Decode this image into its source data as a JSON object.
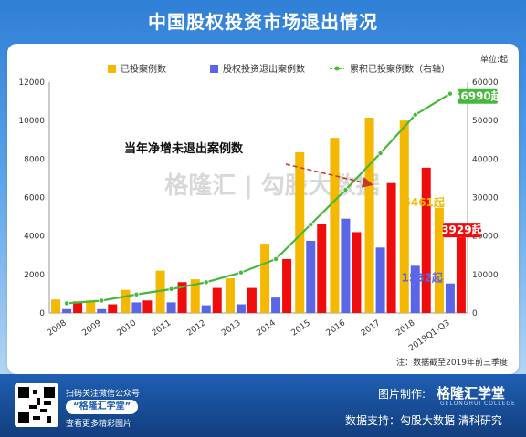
{
  "title": "中国股权投资市场退出情况",
  "colors": {
    "invest": "#f4b800",
    "exit": "#5a66e6",
    "net": "#ee0c0c",
    "cumulative": "#48b83c",
    "text": "#333333"
  },
  "chart_data": {
    "type": "bar",
    "categories": [
      "2008",
      "2009",
      "2010",
      "2011",
      "2012",
      "2013",
      "2014",
      "2015",
      "2016",
      "2017",
      "2018",
      "2019Q1-Q3"
    ],
    "series": [
      {
        "name": "已投案例数",
        "values": [
          700,
          650,
          1200,
          2200,
          1750,
          1800,
          3600,
          8350,
          9100,
          10150,
          10000,
          5461
        ],
        "axis": "left"
      },
      {
        "name": "股权投资退出案例数",
        "values": [
          200,
          200,
          550,
          550,
          400,
          450,
          800,
          3750,
          4900,
          3400,
          2450,
          1532
        ],
        "axis": "left"
      },
      {
        "name": "",
        "values": [
          600,
          450,
          650,
          1600,
          1300,
          1300,
          2800,
          4600,
          4200,
          6750,
          7550,
          3929
        ],
        "axis": "left"
      },
      {
        "name": "累积已投案例数（右轴）",
        "values": [
          2500,
          3200,
          4800,
          6200,
          8000,
          10500,
          14000,
          23000,
          32000,
          41500,
          51500,
          56990
        ],
        "axis": "right"
      }
    ],
    "ylim_left": [
      0,
      12000
    ],
    "yticks_left": [
      "0",
      "2000",
      "4000",
      "6000",
      "8000",
      "10000",
      "12000"
    ],
    "ylim_right": [
      0,
      60000
    ],
    "yticks_right": [
      "0",
      "10000",
      "20000",
      "30000",
      "40000",
      "50000",
      "60000"
    ],
    "unit_label": "单位:起",
    "legend_position": "top",
    "grid": false,
    "annotations": {
      "net_arrow": "当年净增未退出案例数",
      "label_invest_last": "5461起",
      "label_net_last": "3929起",
      "label_exit_last": "1532起",
      "label_cum_last": "56990起"
    },
    "note": "注：数据截至2019年前三季度",
    "watermark": "格隆汇 | 勾股大数据"
  },
  "footer": {
    "scan_text": "扫码关注微信公众号",
    "logo_text": "“格隆汇学堂”",
    "more_text": "查看更多精彩图片",
    "made_by": "图片制作:",
    "brand": "格隆汇学堂",
    "brand_sub": "GELONGHUI COLLEGE",
    "support": "数据支持：勾股大数据 清科研究"
  }
}
